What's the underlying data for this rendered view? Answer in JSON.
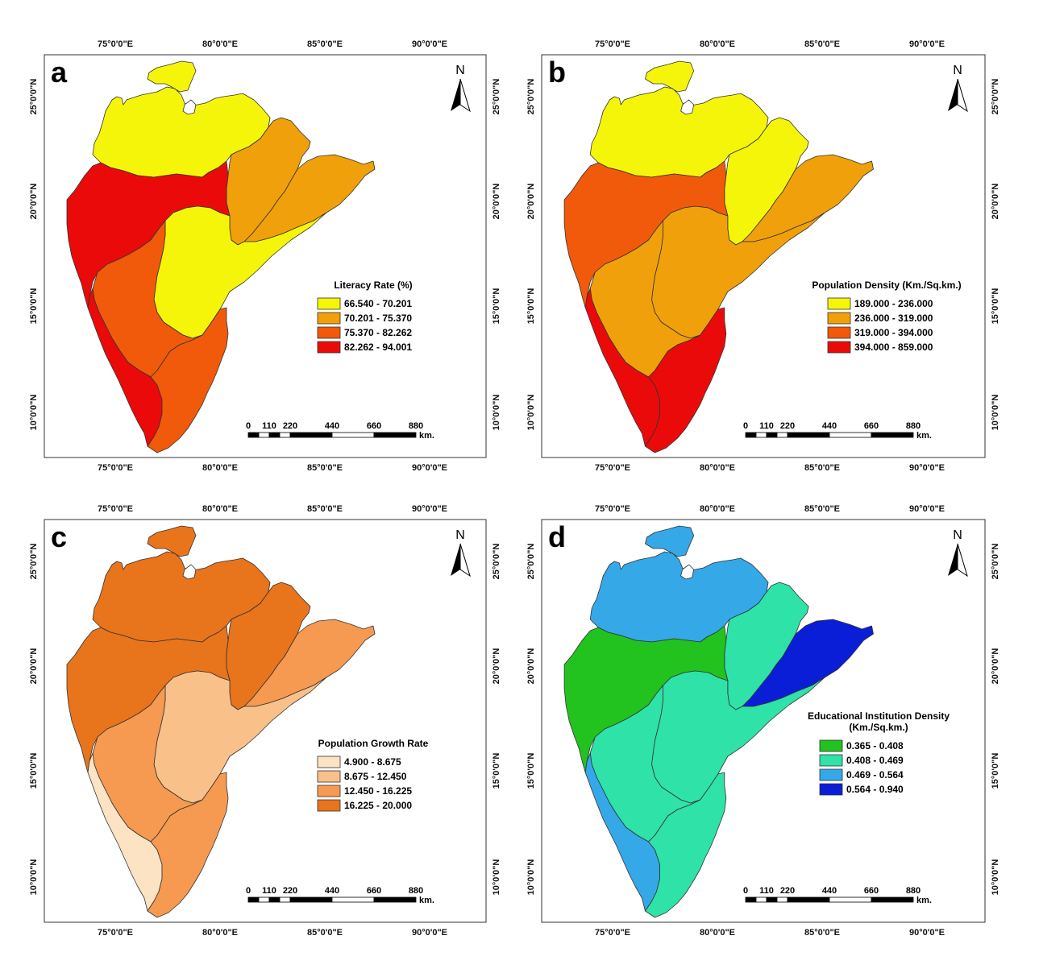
{
  "panels": [
    {
      "label": "a",
      "legend": {
        "title": [
          "Literacy Rate (%)"
        ],
        "items": [
          {
            "label": "66.540 - 70.201",
            "color": "#f5f50a"
          },
          {
            "label": "70.201 - 75.370",
            "color": "#f0a00a"
          },
          {
            "label": "75.370 - 82.262",
            "color": "#f05a0a"
          },
          {
            "label": "82.262 - 94.001",
            "color": "#eb0a0a"
          }
        ]
      },
      "regions": {
        "north": "#f5f50a",
        "east_upper": "#f0a00a",
        "east_coast": "#f0a00a",
        "west": "#eb0a0a",
        "center": "#f5f50a",
        "south_central": "#f05a0a",
        "south_west": "#eb0a0a",
        "south_east": "#f05a0a"
      }
    },
    {
      "label": "b",
      "legend": {
        "title": [
          "Population Density (Km./Sq.km.)"
        ],
        "items": [
          {
            "label": "189.000 - 236.000",
            "color": "#f5f50a"
          },
          {
            "label": "236.000 - 319.000",
            "color": "#f0a00a"
          },
          {
            "label": "319.000 - 394.000",
            "color": "#f05a0a"
          },
          {
            "label": "394.000 - 859.000",
            "color": "#eb0a0a"
          }
        ]
      },
      "regions": {
        "north": "#f5f50a",
        "east_upper": "#f5f50a",
        "east_coast": "#f0a00a",
        "west": "#f05a0a",
        "center": "#f0a00a",
        "south_central": "#f0a00a",
        "south_west": "#eb0a0a",
        "south_east": "#eb0a0a"
      }
    },
    {
      "label": "c",
      "legend": {
        "title": [
          "Population Growth Rate"
        ],
        "items": [
          {
            "label": "4.900 - 8.675",
            "color": "#fbe3c4"
          },
          {
            "label": "8.675 - 12.450",
            "color": "#f9c08a"
          },
          {
            "label": "12.450 - 16.225",
            "color": "#f59a50"
          },
          {
            "label": "16.225 - 20.000",
            "color": "#e8741c"
          }
        ]
      },
      "regions": {
        "north": "#e8741c",
        "east_upper": "#e8741c",
        "east_coast": "#f59a50",
        "west": "#e8741c",
        "center": "#f9c08a",
        "south_central": "#f59a50",
        "south_west": "#fbe3c4",
        "south_east": "#f59a50"
      }
    },
    {
      "label": "d",
      "legend": {
        "title": [
          "Educational Institution Density",
          "(Km./Sq.km.)"
        ],
        "items": [
          {
            "label": "0.365 - 0.408",
            "color": "#22c31e"
          },
          {
            "label": "0.408 - 0.469",
            "color": "#2ee2a8"
          },
          {
            "label": "0.469 - 0.564",
            "color": "#35a8e8"
          },
          {
            "label": "0.564 - 0.940",
            "color": "#0a1ed8"
          }
        ]
      },
      "regions": {
        "north": "#35a8e8",
        "east_upper": "#2ee2a8",
        "east_coast": "#0a1ed8",
        "west": "#22c31e",
        "center": "#2ee2a8",
        "south_central": "#2ee2a8",
        "south_west": "#35a8e8",
        "south_east": "#2ee2a8"
      }
    }
  ],
  "axes": {
    "lon_labels": [
      "75°0'0\"E",
      "80°0'0\"E",
      "85°0'0\"E",
      "90°0'0\"E"
    ],
    "lat_labels": [
      "25°0'0\"N",
      "20°0'0\"N",
      "15°0'0\"N",
      "10°0'0\"N"
    ]
  },
  "north_arrow": {
    "label": "N"
  },
  "scale_bar": {
    "ticks": [
      "0",
      "110",
      "220",
      "440",
      "660",
      "880"
    ],
    "unit": "km."
  }
}
